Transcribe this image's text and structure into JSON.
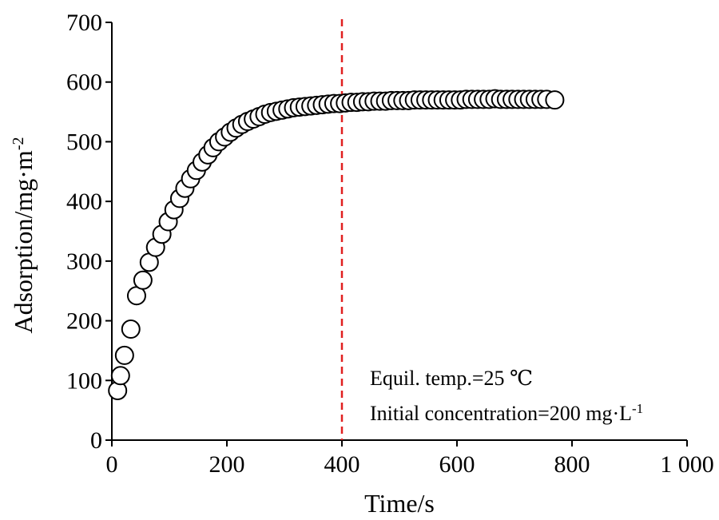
{
  "chart_data": {
    "type": "scatter",
    "xlabel": "Time/s",
    "ylabel_main": "Adsorption/mg·m",
    "ylabel_sup": "-2",
    "xlim": [
      0,
      1000
    ],
    "ylim": [
      0,
      700
    ],
    "x_ticks": [
      0,
      200,
      400,
      600,
      800,
      1000
    ],
    "x_tick_labels": [
      "0",
      "200",
      "400",
      "600",
      "800",
      "1 000"
    ],
    "y_ticks": [
      0,
      100,
      200,
      300,
      400,
      500,
      600,
      700
    ],
    "y_tick_labels": [
      "0",
      "100",
      "200",
      "300",
      "400",
      "500",
      "600",
      "700"
    ],
    "grid": false,
    "vline": {
      "x": 400,
      "color": "#e02020",
      "style": "dashed"
    },
    "annotations": {
      "line1": "Equil. temp.=25 ℃",
      "line2_main": "Initial concentration=200 mg·L",
      "line2_sup": "-1"
    },
    "series": [
      {
        "marker": "open-circle",
        "x": [
          10,
          15,
          22,
          33,
          43,
          54,
          65,
          76,
          87,
          98,
          108,
          118,
          127,
          137,
          147,
          157,
          167,
          176,
          186,
          196,
          206,
          216,
          226,
          236,
          246,
          256,
          266,
          276,
          286,
          296,
          306,
          316,
          326,
          336,
          346,
          356,
          366,
          376,
          386,
          396,
          406,
          416,
          426,
          436,
          446,
          456,
          466,
          476,
          486,
          496,
          506,
          516,
          526,
          536,
          546,
          556,
          566,
          576,
          586,
          596,
          606,
          616,
          626,
          636,
          646,
          656,
          666,
          676,
          686,
          696,
          706,
          716,
          726,
          736,
          746,
          756,
          770
        ],
        "y": [
          83,
          108,
          142,
          186,
          242,
          268,
          298,
          323,
          345,
          366,
          386,
          405,
          422,
          438,
          452,
          466,
          478,
          490,
          500,
          508,
          516,
          523,
          529,
          534,
          538,
          542,
          546,
          549,
          551,
          553,
          555,
          557,
          558,
          559,
          560,
          561,
          562,
          563,
          564,
          564,
          565,
          566,
          566,
          567,
          567,
          568,
          568,
          568,
          569,
          569,
          569,
          569,
          570,
          570,
          570,
          570,
          570,
          570,
          570,
          570,
          570,
          571,
          571,
          571,
          571,
          571,
          572,
          571,
          571,
          571,
          571,
          571,
          571,
          571,
          571,
          571,
          570
        ]
      }
    ]
  }
}
